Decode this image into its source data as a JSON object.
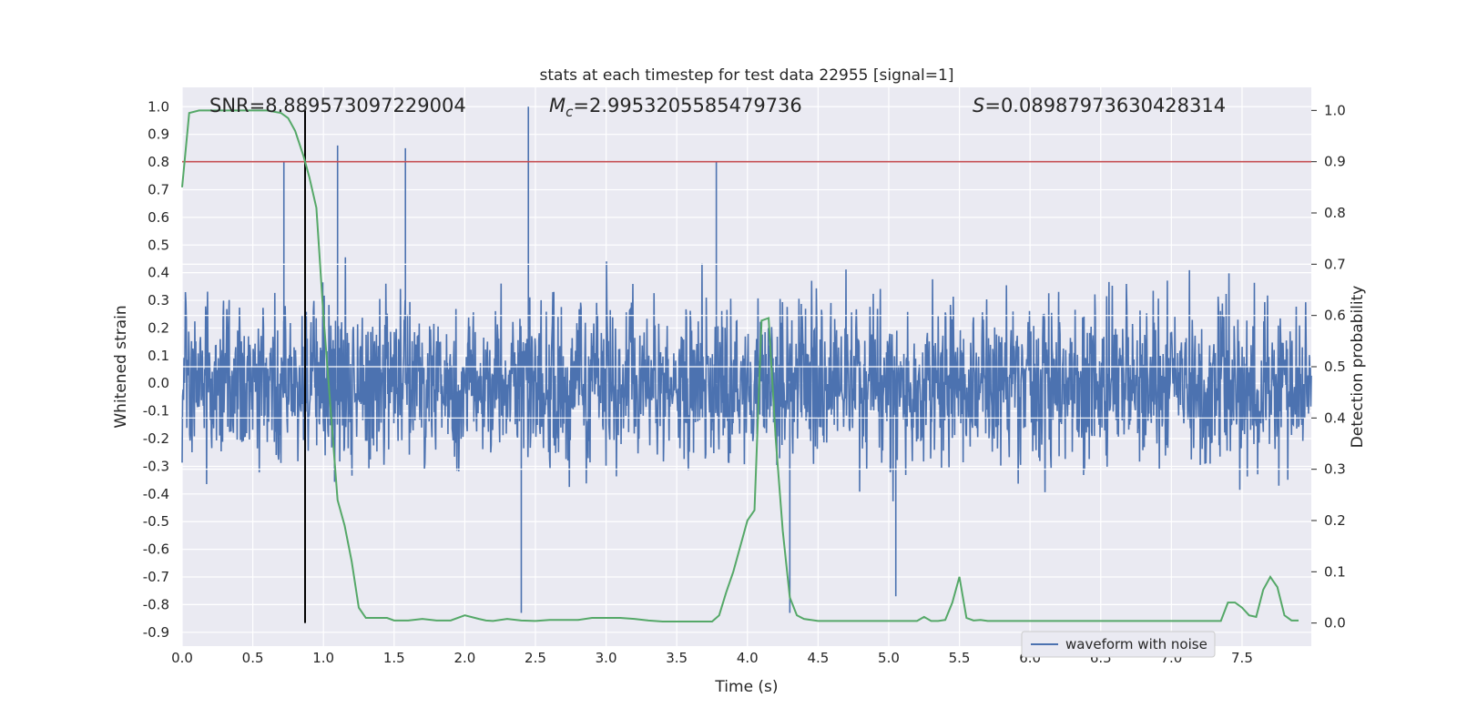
{
  "chart_data": {
    "type": "line",
    "title": "stats at each timestep for test data 22955 [signal=1]",
    "xlabel": "Time (s)",
    "ylabel_left": "Whitened strain",
    "ylabel_right": "Detection probability",
    "xlim": [
      0.0,
      7.99
    ],
    "ylim_left": [
      -0.95,
      1.07
    ],
    "ylim_right": [
      -0.045,
      1.045
    ],
    "x_ticks": [
      "0.0",
      "0.5",
      "1.0",
      "1.5",
      "2.0",
      "2.5",
      "3.0",
      "3.5",
      "4.0",
      "4.5",
      "5.0",
      "5.5",
      "6.0",
      "6.5",
      "7.0",
      "7.5"
    ],
    "y_ticks_left": [
      "1.0",
      "0.9",
      "0.8",
      "0.7",
      "0.6",
      "0.5",
      "0.4",
      "0.3",
      "0.2",
      "0.1",
      "0.0",
      "-0.1",
      "-0.2",
      "-0.3",
      "-0.4",
      "-0.5",
      "-0.6",
      "-0.7",
      "-0.8",
      "-0.9"
    ],
    "y_ticks_right": [
      "1.0",
      "0.9",
      "0.8",
      "0.7",
      "0.6",
      "0.5",
      "0.4",
      "0.3",
      "0.2",
      "0.1",
      "0.0"
    ],
    "grid": true,
    "legend_position": "lower-right",
    "annotations": {
      "snr": "SNR=8.889573097229004",
      "mc": "=2.9953205585479736",
      "s": "=0.08987973630428314"
    },
    "threshold_probability": 0.9,
    "marker_time": 0.87,
    "colors": {
      "waveform": "#4c72b0",
      "probability": "#55a868",
      "threshold": "#c44e52",
      "marker": "#000000",
      "axes_bg": "#eaeaf2",
      "grid": "#ffffff"
    },
    "series": [
      {
        "name": "waveform with noise",
        "axis": "left",
        "description_values": "whitened strain noise, envelope about ±0.5 with spikes up to 1.0 at t≈2.45 and down to -0.83 at t≈2.4"
      },
      {
        "axis": "right",
        "x": [
          0.0,
          0.05,
          0.12,
          0.2,
          0.3,
          0.4,
          0.5,
          0.6,
          0.7,
          0.75,
          0.8,
          0.86,
          0.9,
          0.95,
          1.0,
          1.05,
          1.1,
          1.15,
          1.2,
          1.25,
          1.3,
          1.35,
          1.45,
          1.5,
          1.6,
          1.7,
          1.8,
          1.9,
          2.0,
          2.1,
          2.15,
          2.2,
          2.3,
          2.4,
          2.5,
          2.6,
          2.7,
          2.8,
          2.9,
          3.0,
          3.1,
          3.2,
          3.3,
          3.4,
          3.6,
          3.75,
          3.8,
          3.85,
          3.9,
          3.95,
          4.0,
          4.05,
          4.1,
          4.15,
          4.2,
          4.25,
          4.3,
          4.35,
          4.4,
          4.5,
          4.6,
          4.8,
          5.0,
          5.1,
          5.2,
          5.25,
          5.3,
          5.35,
          5.4,
          5.45,
          5.5,
          5.55,
          5.6,
          5.65,
          5.7,
          5.8,
          5.9,
          6.0,
          6.2,
          6.4,
          6.5,
          6.6,
          6.8,
          7.0,
          7.2,
          7.3,
          7.35,
          7.4,
          7.45,
          7.5,
          7.55,
          7.6,
          7.65,
          7.7,
          7.75,
          7.8,
          7.85,
          7.9
        ],
        "values": [
          0.85,
          0.995,
          1.0,
          1.0,
          1.0,
          1.0,
          1.0,
          1.0,
          0.995,
          0.985,
          0.96,
          0.91,
          0.87,
          0.81,
          0.6,
          0.42,
          0.24,
          0.19,
          0.12,
          0.03,
          0.01,
          0.01,
          0.01,
          0.005,
          0.005,
          0.008,
          0.005,
          0.005,
          0.015,
          0.008,
          0.005,
          0.004,
          0.008,
          0.005,
          0.004,
          0.006,
          0.006,
          0.006,
          0.01,
          0.01,
          0.01,
          0.008,
          0.005,
          0.003,
          0.003,
          0.003,
          0.015,
          0.06,
          0.1,
          0.15,
          0.2,
          0.22,
          0.59,
          0.595,
          0.36,
          0.18,
          0.05,
          0.015,
          0.008,
          0.004,
          0.004,
          0.004,
          0.004,
          0.004,
          0.004,
          0.012,
          0.004,
          0.004,
          0.006,
          0.04,
          0.09,
          0.01,
          0.005,
          0.006,
          0.004,
          0.004,
          0.004,
          0.004,
          0.004,
          0.004,
          0.004,
          0.004,
          0.004,
          0.004,
          0.004,
          0.004,
          0.004,
          0.04,
          0.04,
          0.03,
          0.015,
          0.012,
          0.065,
          0.09,
          0.07,
          0.015,
          0.005,
          0.005
        ]
      }
    ]
  }
}
